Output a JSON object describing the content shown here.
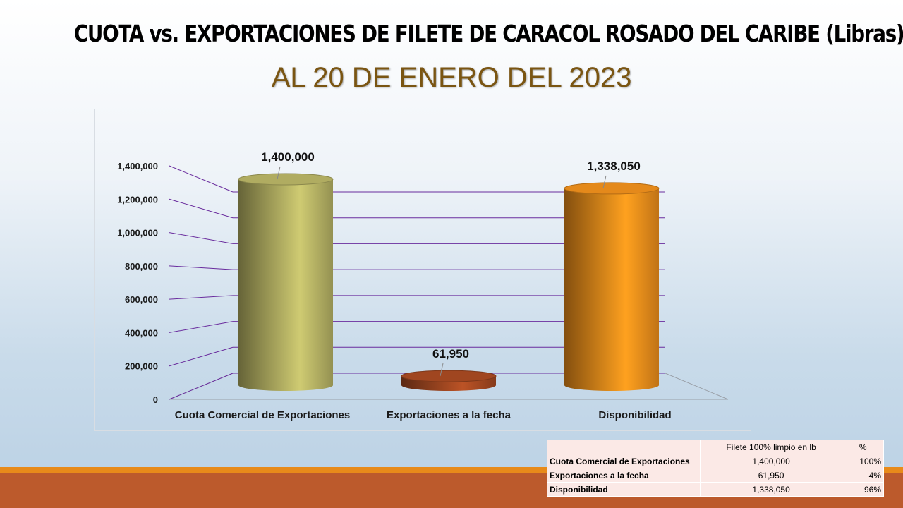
{
  "page": {
    "title": "CUOTA vs. EXPORTACIONES DE FILETE DE CARACOL  ROSADO DEL CARIBE (Libras)",
    "subtitle": "AL 20 DE ENERO DEL 2023"
  },
  "colors": {
    "accent_band": "#e88a1a",
    "footer_band": "#bc5a2c",
    "gridline": "#6a2d9e",
    "subtitle": "#7a5512"
  },
  "chart_data": {
    "type": "bar",
    "categories": [
      "Cuota Comercial de Exportaciones",
      "Exportaciones a la fecha",
      "Disponibilidad"
    ],
    "values": [
      1400000,
      61950,
      1338050
    ],
    "data_labels": [
      "1,400,000",
      "61,950",
      "1,338,050"
    ],
    "bar_colors": [
      "#b9b566",
      "#a84a22",
      "#f0901c"
    ],
    "ylim": [
      0,
      1400000
    ],
    "yticks": [
      0,
      200000,
      400000,
      600000,
      800000,
      1000000,
      1200000,
      1400000
    ],
    "ytick_labels": [
      "0",
      "200,000",
      "400,000",
      "600,000",
      "800,000",
      "1,000,000",
      "1,200,000",
      "1,400,000"
    ],
    "style": "3d-cylinder",
    "grid": true,
    "legend": "none"
  },
  "table": {
    "headers": [
      "",
      "Filete 100% limpio en lb",
      "%"
    ],
    "rows": [
      [
        "Cuota Comercial de Exportaciones",
        "1,400,000",
        "100%"
      ],
      [
        "Exportaciones a la fecha",
        "61,950",
        "4%"
      ],
      [
        "Disponibilidad",
        "1,338,050",
        "96%"
      ]
    ]
  }
}
